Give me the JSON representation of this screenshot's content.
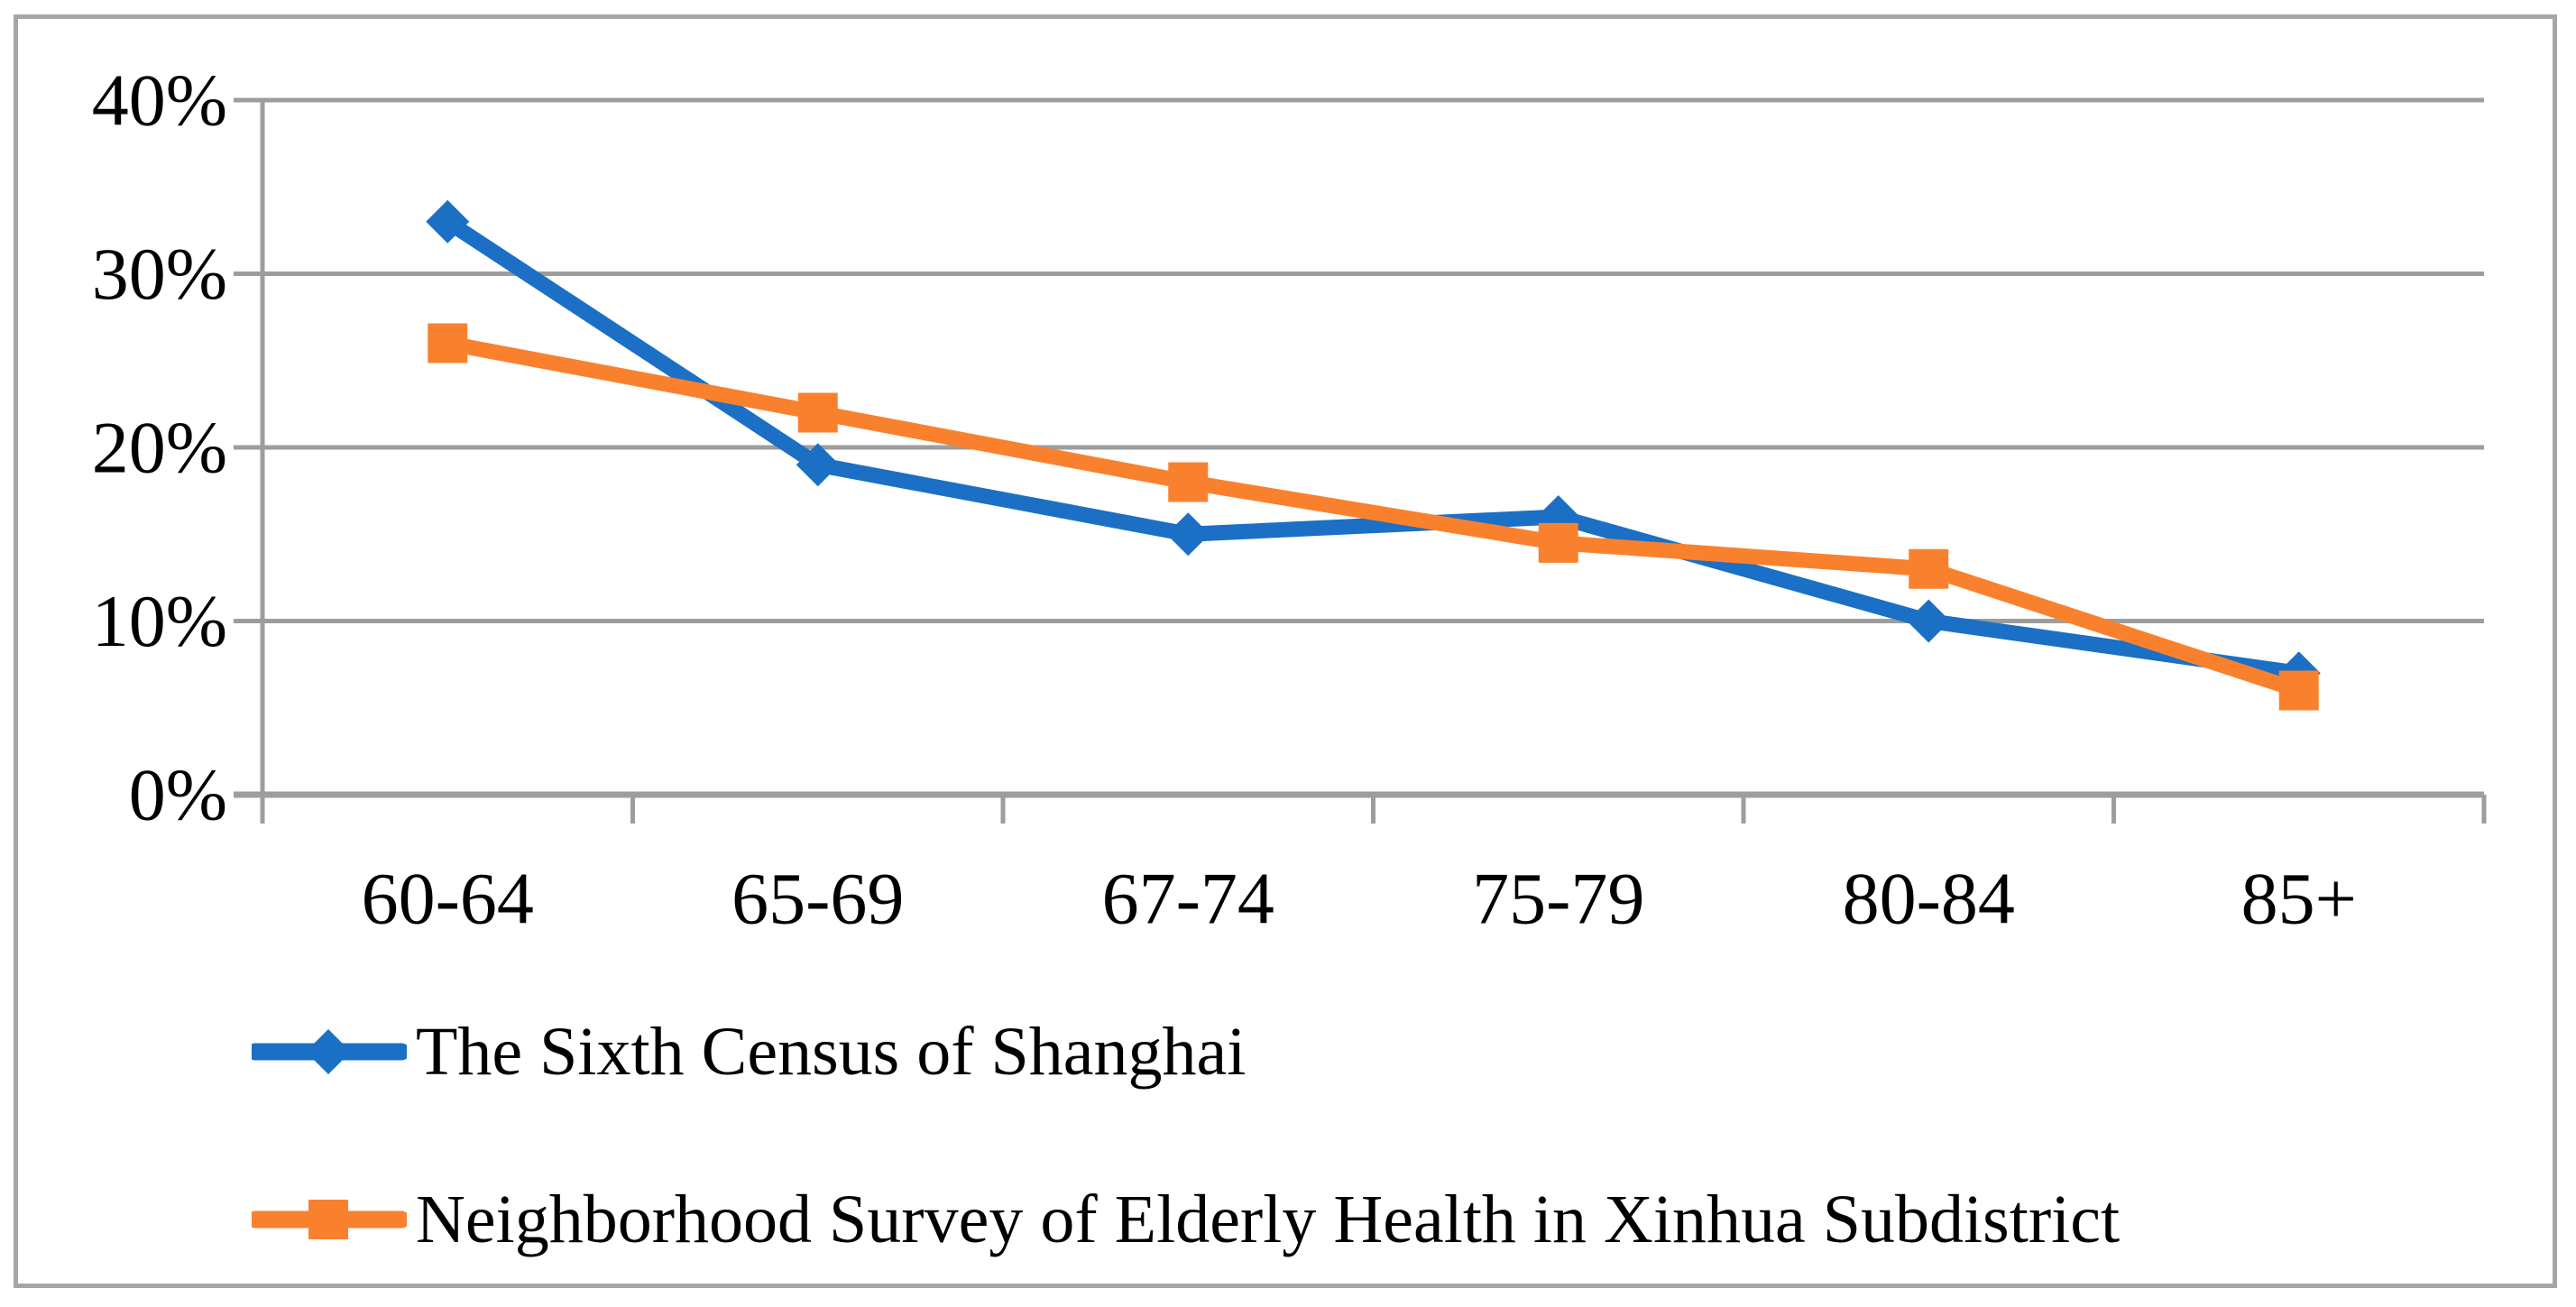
{
  "figure": {
    "background": "#FFFFFF",
    "border_color": "#A6A6A6"
  },
  "chart_data": {
    "type": "line",
    "categories": [
      "60-64",
      "65-69",
      "67-74",
      "75-79",
      "80-84",
      "85+"
    ],
    "series": [
      {
        "name": "The Sixth Census of Shanghai",
        "marker": "diamond",
        "color": "#1B70C5",
        "values": [
          33,
          19,
          15,
          16,
          10,
          7
        ]
      },
      {
        "name": "Neighborhood Survey of Elderly Health in Xinhua Subdistrict",
        "marker": "square",
        "color": "#F9812E",
        "values": [
          26,
          22,
          18,
          14.5,
          13,
          6
        ]
      }
    ],
    "y_axis": {
      "min": 0,
      "max": 40,
      "step": 10,
      "tick_labels": [
        "0%",
        "10%",
        "20%",
        "30%",
        "40%"
      ],
      "format": "percent"
    },
    "x_axis": {
      "tick_labels": [
        "60-64",
        "65-69",
        "67-74",
        "75-79",
        "80-84",
        "85+"
      ]
    },
    "grid": true,
    "legend_position": "bottom-left",
    "colors": {
      "gridline": "#9D9D9D",
      "axis": "#9D9D9D",
      "tick": "#9D9D9D",
      "text": "#000000",
      "background": "#FFFFFF"
    }
  }
}
